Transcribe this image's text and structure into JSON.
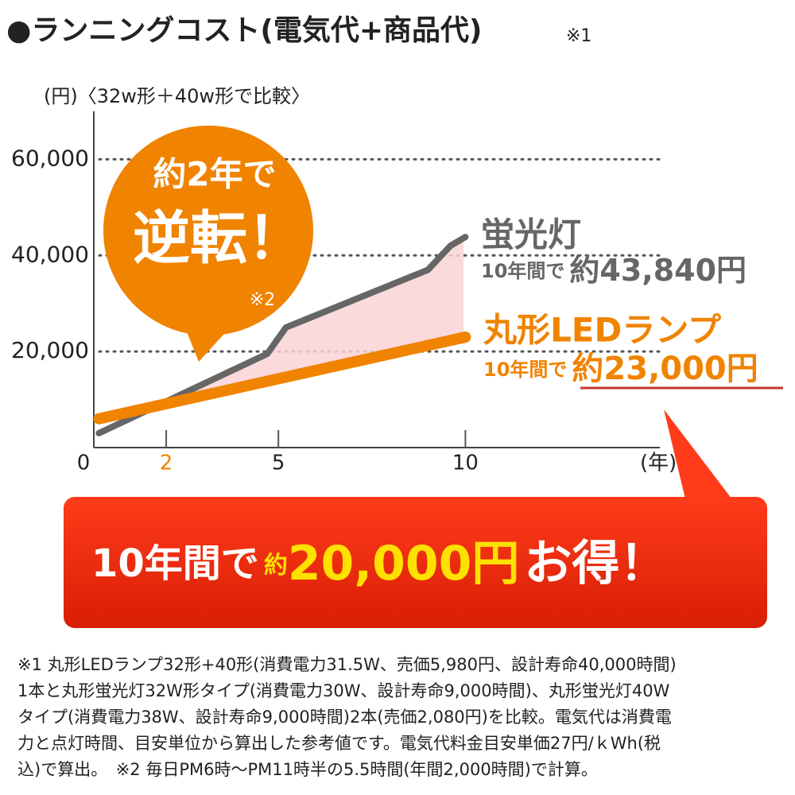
{
  "chart_data": {
    "type": "line",
    "title": "●ランニングコスト(電気代+商品代)",
    "title_note": "※1",
    "ylabel": "(円)〈32w形＋40w形で比較〉",
    "xlabel": "(年)",
    "xlim": [
      0,
      15.2
    ],
    "ylim": [
      0,
      70000
    ],
    "xticks": [
      0,
      2,
      5,
      10
    ],
    "yticks": [
      {
        "value": 20000,
        "label": "20,000"
      },
      {
        "value": 40000,
        "label": "40,000"
      },
      {
        "value": 60000,
        "label": "60,000"
      }
    ],
    "grid": true,
    "series": [
      {
        "name": "蛍光灯",
        "color": "#666666",
        "x": [
          0.2,
          4.7,
          5.2,
          9.0,
          9.6,
          10
        ],
        "values": [
          3000,
          19500,
          25000,
          37000,
          42000,
          43840
        ],
        "note": [
          "10年間で",
          "約43,840円"
        ]
      },
      {
        "name": "丸形LEDランプ",
        "color": "#f08300",
        "x": [
          0.2,
          10
        ],
        "values": [
          6000,
          23000
        ],
        "note": [
          "10年間で",
          "約23,000円"
        ]
      }
    ],
    "callout": {
      "lines": [
        "約2年で",
        "逆転！"
      ],
      "note": "※2"
    },
    "banner": [
      "10年間で",
      "約",
      "20,000円",
      "お得！"
    ],
    "footnote": [
      "※1 丸形LEDランプ32形+40形(消費電力31.5W、売価5,980円、設計寿命40,000時間)",
      "1本と丸形蛍光灯32W形タイプ(消費電力30W、設計寿命9,000時間)、丸形蛍光灯40W",
      "タイプ(消費電力38W、設計寿命9,000時間)2本(売価2,080円)を比較。電気代は消費電",
      "力と点灯時間、目安単位から算出した参考値です。電気代料金目安単価27円/ｋWh(税",
      "込)で算出。　※2 毎日PM6時～PM11時半の5.5時間(年間2,000時間)で計算。"
    ]
  }
}
